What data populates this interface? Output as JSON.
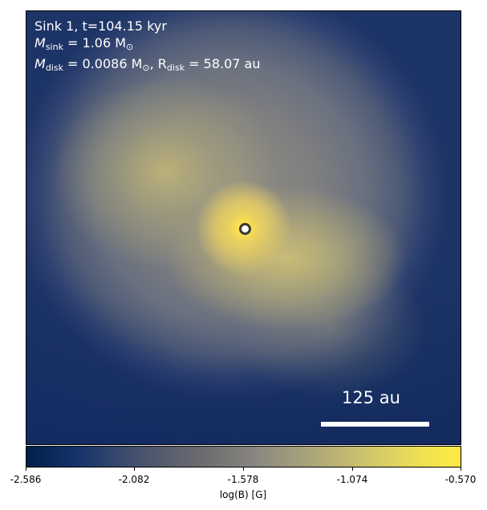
{
  "annotation": {
    "title": "Sink 1, t=104.15 kyr",
    "msink_symbol": "M",
    "msink_sub": "sink",
    "msink_value": " = 1.06 M",
    "msink_sun": "⊙",
    "mdisk_symbol": "M",
    "mdisk_sub": "disk",
    "mdisk_value": " = 0.0086 M",
    "mdisk_sun": "⊙",
    "rdisk_symbol": ", R",
    "rdisk_sub": "disk",
    "rdisk_value": " = 58.07 au"
  },
  "scalebar": {
    "label": "125 au"
  },
  "colorbar": {
    "ticks": [
      "-2.586",
      "-2.082",
      "-1.578",
      "-1.074",
      "-0.570"
    ],
    "label": "log(B) [G]",
    "colormap": "cividis"
  }
}
